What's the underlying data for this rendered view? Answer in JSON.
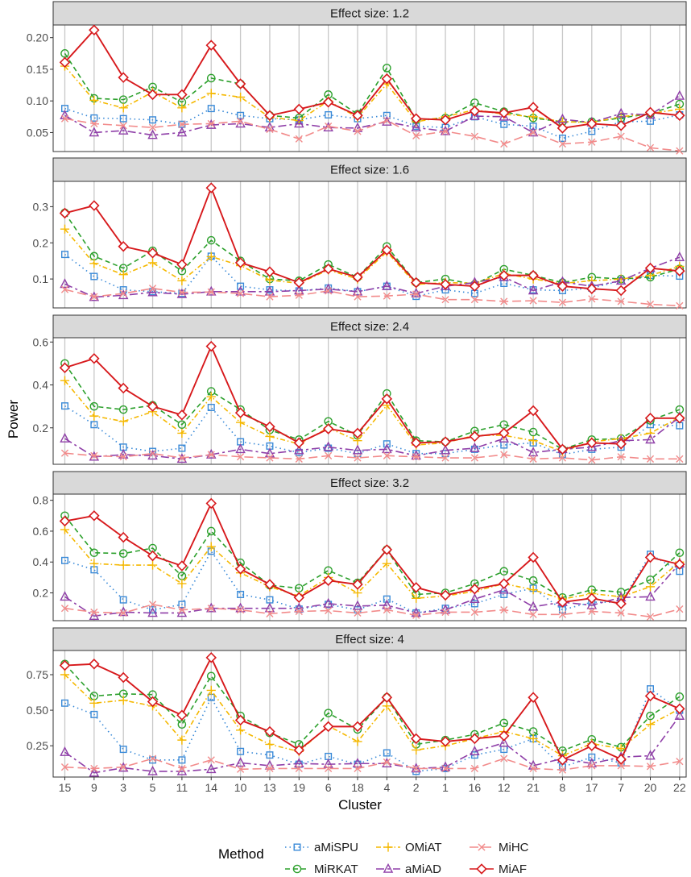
{
  "chart_data": {
    "type": "line",
    "ylabel": "Power",
    "xlabel": "Cluster",
    "categories": [
      "15",
      "9",
      "3",
      "5",
      "11",
      "14",
      "10",
      "13",
      "19",
      "6",
      "18",
      "4",
      "2",
      "1",
      "16",
      "12",
      "21",
      "8",
      "17",
      "7",
      "20",
      "22"
    ],
    "legend": {
      "title": "Method",
      "placement": "bottom",
      "entries": [
        "aMiSPU",
        "MiRKAT",
        "OMiAT",
        "aMiAD",
        "MiHC",
        "MiAF"
      ]
    },
    "series_styles": {
      "aMiSPU": {
        "color": "#3a8ad8",
        "dash": "1.5,4",
        "marker": "square"
      },
      "MiRKAT": {
        "color": "#2ca02c",
        "dash": "6,4",
        "marker": "circle"
      },
      "OMiAT": {
        "color": "#f5b800",
        "dash": "6,3,1.5,3",
        "marker": "plus"
      },
      "aMiAD": {
        "color": "#8f3fa8",
        "dash": "10,4,3,4",
        "marker": "triangle"
      },
      "MiHC": {
        "color": "#f28b8b",
        "dash": "11,5",
        "marker": "cross"
      },
      "MiAF": {
        "color": "#d7191c",
        "dash": "",
        "marker": "diamond"
      }
    },
    "panels": [
      {
        "title": "Effect size: 1.2",
        "ylim": [
          0.02,
          0.22
        ],
        "yticks": [
          0.05,
          0.1,
          0.15,
          0.2
        ],
        "ytick_labels": [
          "0.05",
          "0.10",
          "0.15",
          "0.20"
        ],
        "series": [
          {
            "name": "aMiSPU",
            "values": [
              0.088,
              0.073,
              0.072,
              0.07,
              0.063,
              0.088,
              0.077,
              0.072,
              0.07,
              0.078,
              0.072,
              0.077,
              0.06,
              0.058,
              0.075,
              0.063,
              0.06,
              0.041,
              0.052,
              0.067,
              0.068,
              0.078
            ]
          },
          {
            "name": "MiRKAT",
            "values": [
              0.175,
              0.104,
              0.102,
              0.122,
              0.098,
              0.136,
              0.127,
              0.077,
              0.073,
              0.11,
              0.079,
              0.152,
              0.07,
              0.073,
              0.097,
              0.083,
              0.073,
              0.067,
              0.067,
              0.073,
              0.08,
              0.095
            ]
          },
          {
            "name": "OMiAT",
            "values": [
              0.155,
              0.101,
              0.089,
              0.114,
              0.089,
              0.112,
              0.106,
              0.074,
              0.069,
              0.1,
              0.074,
              0.127,
              0.067,
              0.075,
              0.086,
              0.079,
              0.075,
              0.067,
              0.066,
              0.075,
              0.08,
              0.087
            ]
          },
          {
            "name": "aMiAD",
            "values": [
              0.077,
              0.05,
              0.053,
              0.046,
              0.05,
              0.062,
              0.064,
              0.058,
              0.064,
              0.058,
              0.057,
              0.067,
              0.058,
              0.052,
              0.076,
              0.075,
              0.05,
              0.071,
              0.066,
              0.08,
              0.078,
              0.108
            ]
          },
          {
            "name": "MiHC",
            "values": [
              0.072,
              0.064,
              0.061,
              0.058,
              0.063,
              0.064,
              0.068,
              0.055,
              0.04,
              0.06,
              0.052,
              0.069,
              0.045,
              0.052,
              0.044,
              0.032,
              0.05,
              0.032,
              0.035,
              0.044,
              0.026,
              0.021
            ]
          },
          {
            "name": "MiAF",
            "values": [
              0.161,
              0.212,
              0.137,
              0.11,
              0.11,
              0.188,
              0.127,
              0.077,
              0.087,
              0.098,
              0.077,
              0.135,
              0.072,
              0.07,
              0.084,
              0.081,
              0.09,
              0.057,
              0.064,
              0.061,
              0.082,
              0.077
            ]
          }
        ]
      },
      {
        "title": "Effect size: 1.6",
        "ylim": [
          0.02,
          0.37
        ],
        "yticks": [
          0.1,
          0.2,
          0.3
        ],
        "ytick_labels": [
          "0.1",
          "0.2",
          "0.3"
        ],
        "series": [
          {
            "name": "aMiSPU",
            "values": [
              0.168,
              0.107,
              0.07,
              0.065,
              0.06,
              0.163,
              0.08,
              0.07,
              0.067,
              0.075,
              0.065,
              0.08,
              0.052,
              0.07,
              0.06,
              0.088,
              0.07,
              0.068,
              0.075,
              0.095,
              0.11,
              0.108
            ]
          },
          {
            "name": "MiRKAT",
            "values": [
              0.283,
              0.163,
              0.13,
              0.178,
              0.122,
              0.207,
              0.15,
              0.1,
              0.095,
              0.14,
              0.105,
              0.19,
              0.09,
              0.1,
              0.085,
              0.127,
              0.11,
              0.09,
              0.105,
              0.1,
              0.105,
              0.128
            ]
          },
          {
            "name": "OMiAT",
            "values": [
              0.238,
              0.143,
              0.112,
              0.145,
              0.095,
              0.162,
              0.137,
              0.097,
              0.088,
              0.125,
              0.1,
              0.175,
              0.085,
              0.09,
              0.088,
              0.115,
              0.1,
              0.088,
              0.095,
              0.1,
              0.11,
              0.135
            ]
          },
          {
            "name": "aMiAD",
            "values": [
              0.086,
              0.05,
              0.055,
              0.063,
              0.058,
              0.065,
              0.065,
              0.065,
              0.068,
              0.072,
              0.065,
              0.08,
              0.06,
              0.08,
              0.09,
              0.105,
              0.068,
              0.092,
              0.08,
              0.095,
              0.13,
              0.16
            ]
          },
          {
            "name": "MiHC",
            "values": [
              0.071,
              0.051,
              0.06,
              0.074,
              0.063,
              0.064,
              0.06,
              0.051,
              0.055,
              0.067,
              0.051,
              0.053,
              0.058,
              0.043,
              0.043,
              0.038,
              0.04,
              0.035,
              0.045,
              0.038,
              0.03,
              0.026
            ]
          },
          {
            "name": "MiAF",
            "values": [
              0.282,
              0.303,
              0.19,
              0.172,
              0.14,
              0.352,
              0.145,
              0.12,
              0.09,
              0.128,
              0.105,
              0.18,
              0.09,
              0.085,
              0.08,
              0.11,
              0.11,
              0.08,
              0.073,
              0.068,
              0.13,
              0.122
            ]
          }
        ]
      },
      {
        "title": "Effect size: 2.4",
        "ylim": [
          0.03,
          0.62
        ],
        "yticks": [
          0.2,
          0.4,
          0.6
        ],
        "ytick_labels": [
          "0.2",
          "0.4",
          "0.6"
        ],
        "series": [
          {
            "name": "aMiSPU",
            "values": [
              0.302,
              0.215,
              0.11,
              0.09,
              0.105,
              0.295,
              0.135,
              0.115,
              0.085,
              0.105,
              0.08,
              0.125,
              0.08,
              0.08,
              0.1,
              0.12,
              0.13,
              0.075,
              0.1,
              0.11,
              0.215,
              0.21
            ]
          },
          {
            "name": "MiRKAT",
            "values": [
              0.5,
              0.3,
              0.285,
              0.305,
              0.215,
              0.37,
              0.285,
              0.19,
              0.145,
              0.23,
              0.165,
              0.36,
              0.14,
              0.135,
              0.185,
              0.215,
              0.18,
              0.1,
              0.145,
              0.15,
              0.235,
              0.285
            ]
          },
          {
            "name": "OMiAT",
            "values": [
              0.42,
              0.255,
              0.23,
              0.275,
              0.175,
              0.345,
              0.225,
              0.16,
              0.125,
              0.2,
              0.14,
              0.305,
              0.12,
              0.13,
              0.165,
              0.165,
              0.14,
              0.09,
              0.135,
              0.15,
              0.175,
              0.25
            ]
          },
          {
            "name": "aMiAD",
            "values": [
              0.15,
              0.065,
              0.075,
              0.07,
              0.055,
              0.075,
              0.1,
              0.08,
              0.095,
              0.11,
              0.095,
              0.1,
              0.07,
              0.095,
              0.105,
              0.15,
              0.085,
              0.1,
              0.11,
              0.14,
              0.145,
              0.25
            ]
          },
          {
            "name": "MiHC",
            "values": [
              0.082,
              0.07,
              0.065,
              0.08,
              0.06,
              0.075,
              0.065,
              0.06,
              0.055,
              0.07,
              0.06,
              0.07,
              0.065,
              0.06,
              0.06,
              0.075,
              0.055,
              0.06,
              0.05,
              0.065,
              0.055,
              0.055
            ]
          },
          {
            "name": "MiAF",
            "values": [
              0.48,
              0.523,
              0.385,
              0.3,
              0.26,
              0.58,
              0.27,
              0.205,
              0.13,
              0.195,
              0.175,
              0.335,
              0.13,
              0.135,
              0.16,
              0.175,
              0.28,
              0.1,
              0.13,
              0.125,
              0.245,
              0.245
            ]
          }
        ]
      },
      {
        "title": "Effect size: 3.2",
        "ylim": [
          0.02,
          0.84
        ],
        "yticks": [
          0.2,
          0.4,
          0.6,
          0.8
        ],
        "ytick_labels": [
          "0.2",
          "0.4",
          "0.6",
          "0.8"
        ],
        "series": [
          {
            "name": "aMiSPU",
            "values": [
              0.41,
              0.35,
              0.155,
              0.09,
              0.125,
              0.47,
              0.19,
              0.155,
              0.095,
              0.125,
              0.09,
              0.16,
              0.07,
              0.1,
              0.13,
              0.19,
              0.23,
              0.09,
              0.14,
              0.14,
              0.45,
              0.34
            ]
          },
          {
            "name": "MiRKAT",
            "values": [
              0.7,
              0.46,
              0.455,
              0.49,
              0.31,
              0.6,
              0.395,
              0.25,
              0.23,
              0.345,
              0.265,
              0.48,
              0.19,
              0.2,
              0.26,
              0.34,
              0.28,
              0.17,
              0.22,
              0.205,
              0.285,
              0.46
            ]
          },
          {
            "name": "OMiAT",
            "values": [
              0.61,
              0.39,
              0.38,
              0.38,
              0.26,
              0.5,
              0.33,
              0.24,
              0.18,
              0.3,
              0.2,
              0.39,
              0.165,
              0.18,
              0.21,
              0.26,
              0.22,
              0.16,
              0.195,
              0.175,
              0.24,
              0.4
            ]
          },
          {
            "name": "aMiAD",
            "values": [
              0.175,
              0.05,
              0.075,
              0.07,
              0.07,
              0.1,
              0.1,
              0.1,
              0.1,
              0.13,
              0.115,
              0.12,
              0.07,
              0.09,
              0.16,
              0.22,
              0.11,
              0.14,
              0.12,
              0.17,
              0.175,
              0.39
            ]
          },
          {
            "name": "MiHC",
            "values": [
              0.1,
              0.075,
              0.07,
              0.125,
              0.09,
              0.1,
              0.09,
              0.065,
              0.08,
              0.085,
              0.07,
              0.09,
              0.055,
              0.075,
              0.075,
              0.09,
              0.06,
              0.06,
              0.08,
              0.07,
              0.045,
              0.095
            ]
          },
          {
            "name": "MiAF",
            "values": [
              0.665,
              0.7,
              0.56,
              0.44,
              0.375,
              0.78,
              0.355,
              0.255,
              0.17,
              0.28,
              0.255,
              0.48,
              0.235,
              0.185,
              0.225,
              0.26,
              0.43,
              0.14,
              0.165,
              0.13,
              0.43,
              0.385
            ]
          }
        ]
      },
      {
        "title": "Effect size: 4",
        "ylim": [
          0.03,
          0.92
        ],
        "yticks": [
          0.25,
          0.5,
          0.75
        ],
        "ytick_labels": [
          "0.25",
          "0.50",
          "0.75"
        ],
        "series": [
          {
            "name": "aMiSPU",
            "values": [
              0.55,
              0.47,
              0.225,
              0.15,
              0.15,
              0.59,
              0.21,
              0.185,
              0.12,
              0.175,
              0.12,
              0.2,
              0.07,
              0.09,
              0.185,
              0.225,
              0.3,
              0.1,
              0.17,
              0.13,
              0.65,
              0.5
            ]
          },
          {
            "name": "MiRKAT",
            "values": [
              0.825,
              0.6,
              0.615,
              0.61,
              0.4,
              0.74,
              0.46,
              0.34,
              0.26,
              0.48,
              0.365,
              0.59,
              0.26,
              0.29,
              0.33,
              0.41,
              0.35,
              0.215,
              0.295,
              0.24,
              0.46,
              0.595
            ]
          },
          {
            "name": "OMiAT",
            "values": [
              0.75,
              0.55,
              0.57,
              0.53,
              0.29,
              0.64,
              0.36,
              0.26,
              0.21,
              0.39,
              0.28,
              0.53,
              0.22,
              0.25,
              0.3,
              0.35,
              0.3,
              0.18,
              0.265,
              0.23,
              0.4,
              0.51
            ]
          },
          {
            "name": "aMiAD",
            "values": [
              0.205,
              0.06,
              0.095,
              0.07,
              0.07,
              0.085,
              0.13,
              0.11,
              0.125,
              0.12,
              0.125,
              0.125,
              0.09,
              0.1,
              0.21,
              0.27,
              0.11,
              0.16,
              0.125,
              0.17,
              0.18,
              0.46
            ]
          },
          {
            "name": "MiHC",
            "values": [
              0.1,
              0.09,
              0.1,
              0.16,
              0.09,
              0.15,
              0.085,
              0.09,
              0.09,
              0.09,
              0.09,
              0.135,
              0.09,
              0.09,
              0.09,
              0.16,
              0.09,
              0.08,
              0.11,
              0.11,
              0.105,
              0.14
            ]
          },
          {
            "name": "MiAF",
            "values": [
              0.815,
              0.825,
              0.73,
              0.56,
              0.465,
              0.87,
              0.43,
              0.35,
              0.22,
              0.385,
              0.385,
              0.59,
              0.3,
              0.28,
              0.3,
              0.32,
              0.59,
              0.15,
              0.25,
              0.155,
              0.6,
              0.51
            ]
          }
        ]
      }
    ]
  }
}
